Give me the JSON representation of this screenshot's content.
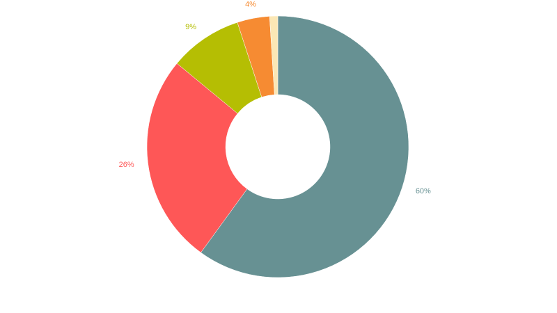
{
  "chart_data": {
    "type": "pie",
    "values": [
      60,
      26,
      9,
      4,
      1
    ],
    "value_labels": [
      "60%",
      "26%",
      "9%",
      "4%",
      null
    ],
    "colors": [
      "#679193",
      "#fe5757",
      "#b5be03",
      "#f68b32",
      "#fbe7b5"
    ]
  }
}
